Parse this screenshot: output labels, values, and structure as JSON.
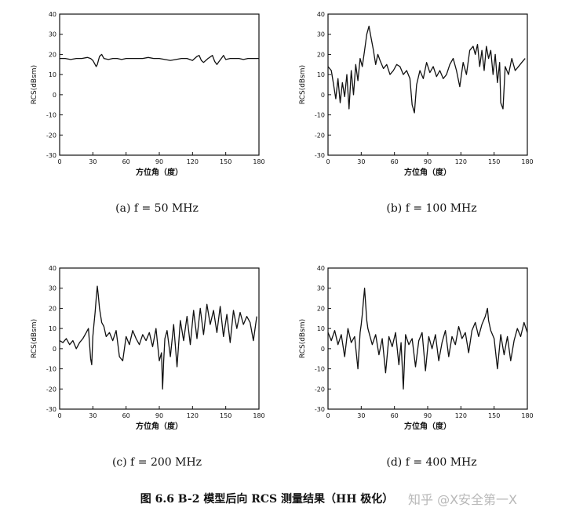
{
  "figure_caption": "图 6.6  B-2 模型后向 RCS 测量结果（HH 极化）",
  "watermark": "知乎 @X安全第一X",
  "chart_data": [
    {
      "type": "line",
      "caption": "(a)  f = 50 MHz",
      "xlabel": "方位角（度）",
      "ylabel": "RCS(dBsm)",
      "xlim": [
        0,
        180
      ],
      "ylim": [
        -30,
        40
      ],
      "xticks": [
        0,
        30,
        60,
        90,
        120,
        150,
        180
      ],
      "yticks": [
        -30,
        -20,
        -10,
        0,
        10,
        20,
        30,
        40
      ],
      "grid": false,
      "series": [
        {
          "x": [
            0,
            5,
            10,
            15,
            20,
            25,
            28,
            30,
            32,
            33,
            34,
            36,
            38,
            40,
            44,
            48,
            52,
            56,
            60,
            65,
            70,
            75,
            80,
            85,
            90,
            95,
            100,
            105,
            110,
            115,
            120,
            124,
            126,
            128,
            130,
            134,
            138,
            140,
            142,
            144,
            146,
            148,
            150,
            154,
            158,
            162,
            166,
            170,
            174,
            178,
            180
          ],
          "y": [
            18,
            18,
            17.5,
            18,
            18,
            18.5,
            18,
            17,
            15,
            14,
            15,
            19,
            20,
            18,
            17.5,
            18,
            18,
            17.5,
            18,
            18,
            18,
            18,
            18.5,
            18,
            18,
            17.5,
            17,
            17.5,
            18,
            18,
            17,
            19,
            19.5,
            17,
            16,
            18,
            19.5,
            16.5,
            15,
            16.5,
            18,
            19.5,
            17.5,
            18,
            18,
            18,
            17.5,
            18,
            18,
            18,
            18
          ]
        }
      ]
    },
    {
      "type": "line",
      "caption": "(b)  f = 100 MHz",
      "xlabel": "方位角（度）",
      "ylabel": "RCS(dBsm)",
      "xlim": [
        0,
        180
      ],
      "ylim": [
        -30,
        40
      ],
      "xticks": [
        0,
        30,
        60,
        90,
        120,
        150,
        180
      ],
      "yticks": [
        -30,
        -20,
        -10,
        0,
        10,
        20,
        30,
        40
      ],
      "grid": false,
      "series": [
        {
          "x": [
            0,
            3,
            5,
            7,
            9,
            11,
            13,
            15,
            17,
            19,
            21,
            23,
            25,
            27,
            29,
            31,
            33,
            35,
            37,
            39,
            41,
            43,
            45,
            47,
            50,
            53,
            56,
            59,
            62,
            65,
            68,
            71,
            74,
            76,
            78,
            80,
            83,
            86,
            89,
            92,
            95,
            98,
            101,
            104,
            107,
            110,
            113,
            116,
            119,
            122,
            125,
            128,
            131,
            133,
            135,
            137,
            139,
            141,
            143,
            145,
            147,
            149,
            151,
            153,
            155,
            156,
            158,
            160,
            163,
            166,
            169,
            172,
            175,
            178
          ],
          "y": [
            14,
            12,
            5,
            -2,
            8,
            -4,
            6,
            -1,
            10,
            -7,
            12,
            0,
            15,
            7,
            18,
            14,
            22,
            30,
            34,
            28,
            22,
            15,
            20,
            17,
            13,
            15,
            10,
            12,
            15,
            14,
            10,
            12,
            8,
            -5,
            -9,
            5,
            12,
            8,
            16,
            11,
            14,
            9,
            12,
            8,
            10,
            15,
            18,
            12,
            4,
            16,
            10,
            22,
            24,
            20,
            25,
            14,
            22,
            12,
            24,
            18,
            22,
            10,
            20,
            6,
            16,
            -4,
            -7,
            14,
            10,
            18,
            12,
            14,
            16,
            18
          ]
        }
      ]
    },
    {
      "type": "line",
      "caption": "(c)  f = 200 MHz",
      "xlabel": "方位角（度）",
      "ylabel": "RCS(dBsm)",
      "xlim": [
        0,
        180
      ],
      "ylim": [
        -30,
        40
      ],
      "xticks": [
        0,
        30,
        60,
        90,
        120,
        150,
        180
      ],
      "yticks": [
        -30,
        -20,
        -10,
        0,
        10,
        20,
        30,
        40
      ],
      "grid": false,
      "series": [
        {
          "x": [
            0,
            3,
            6,
            9,
            12,
            15,
            18,
            21,
            24,
            26,
            28,
            29,
            30,
            31,
            32,
            33,
            34,
            35,
            36,
            38,
            40,
            42,
            45,
            48,
            51,
            54,
            57,
            60,
            63,
            66,
            69,
            72,
            75,
            78,
            81,
            84,
            87,
            90,
            92,
            93,
            94,
            95,
            97,
            100,
            103,
            106,
            109,
            112,
            115,
            118,
            121,
            124,
            127,
            130,
            133,
            136,
            139,
            142,
            145,
            148,
            151,
            154,
            157,
            160,
            163,
            166,
            169,
            172,
            175,
            178
          ],
          "y": [
            4,
            3,
            5,
            2,
            4,
            0,
            3,
            5,
            8,
            10,
            -5,
            -8,
            6,
            12,
            18,
            25,
            31,
            26,
            20,
            13,
            11,
            6,
            8,
            4,
            9,
            -4,
            -6,
            6,
            2,
            9,
            5,
            2,
            7,
            4,
            8,
            1,
            10,
            -6,
            -2,
            -20,
            -6,
            5,
            9,
            -4,
            12,
            -9,
            14,
            4,
            16,
            2,
            19,
            5,
            20,
            7,
            22,
            12,
            19,
            8,
            21,
            6,
            17,
            3,
            19,
            10,
            18,
            12,
            16,
            13,
            4,
            16
          ]
        }
      ]
    },
    {
      "type": "line",
      "caption": "(d)  f = 400 MHz",
      "xlabel": "方位角（度）",
      "ylabel": "RCS(dBsm)",
      "xlim": [
        0,
        180
      ],
      "ylim": [
        -30,
        40
      ],
      "xticks": [
        0,
        30,
        60,
        90,
        120,
        150,
        180
      ],
      "yticks": [
        -30,
        -20,
        -10,
        0,
        10,
        20,
        30,
        40
      ],
      "grid": false,
      "series": [
        {
          "x": [
            0,
            3,
            6,
            9,
            12,
            15,
            18,
            21,
            24,
            27,
            29,
            30,
            31,
            32,
            33,
            34,
            35,
            36,
            38,
            40,
            43,
            46,
            49,
            52,
            55,
            58,
            61,
            64,
            66,
            68,
            70,
            73,
            76,
            79,
            82,
            85,
            88,
            91,
            94,
            97,
            100,
            103,
            106,
            109,
            112,
            115,
            118,
            121,
            124,
            127,
            130,
            133,
            136,
            139,
            142,
            144,
            145,
            147,
            150,
            153,
            156,
            159,
            162,
            165,
            168,
            171,
            174,
            177,
            180
          ],
          "y": [
            8,
            4,
            9,
            2,
            7,
            -4,
            10,
            3,
            6,
            -10,
            8,
            12,
            17,
            24,
            30,
            22,
            14,
            10,
            6,
            2,
            7,
            -3,
            5,
            -12,
            6,
            1,
            8,
            -8,
            3,
            -20,
            7,
            2,
            5,
            -9,
            4,
            8,
            -11,
            6,
            0,
            7,
            -6,
            3,
            9,
            -4,
            6,
            2,
            11,
            5,
            8,
            -2,
            9,
            13,
            6,
            12,
            16,
            20,
            14,
            9,
            5,
            -10,
            7,
            -3,
            6,
            -6,
            4,
            10,
            6,
            13,
            8
          ]
        }
      ]
    }
  ]
}
